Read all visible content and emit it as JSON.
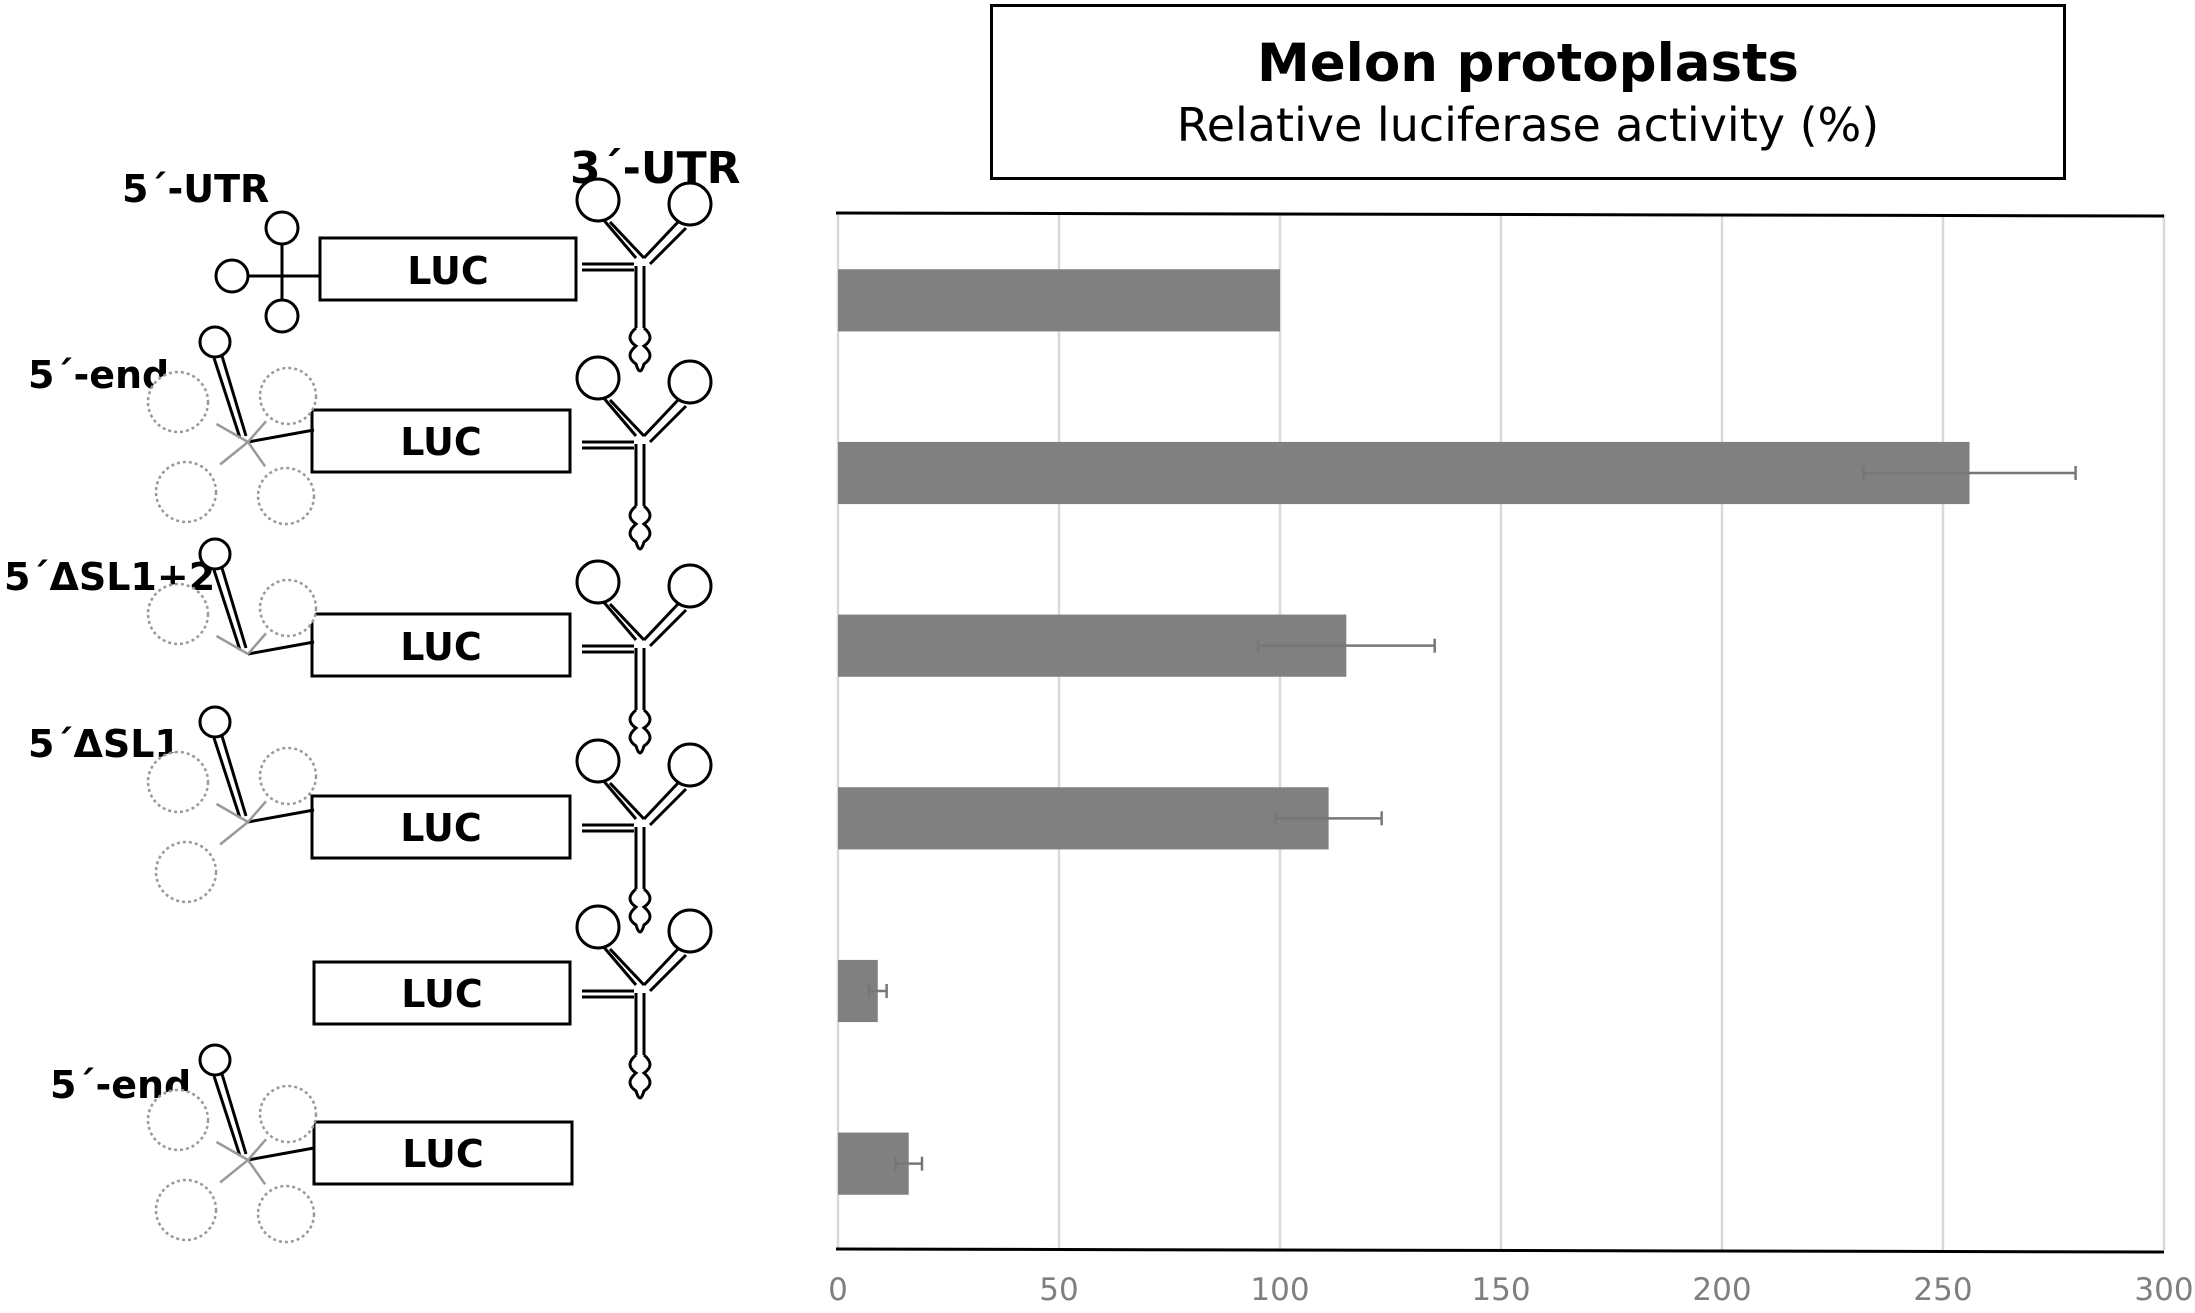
{
  "chart_data": {
    "type": "bar",
    "orientation": "horizontal",
    "title": "Melon protoplasts",
    "subtitle": "Relative luciferase activity (%)",
    "xlim": [
      0,
      300
    ],
    "x_ticks": [
      0,
      50,
      100,
      150,
      200,
      250,
      300
    ],
    "grid": true,
    "categories": [
      "5´-UTR / LUC / 3´-UTR",
      "5´-end / LUC / 3´-UTR",
      "5´ΔSL1+2 / LUC / 3´-UTR",
      "5´ΔSL1 / LUC / 3´-UTR",
      "LUC / 3´-UTR",
      "5´-end / LUC"
    ],
    "values": [
      100,
      256,
      115,
      111,
      9,
      16
    ],
    "errors": [
      0,
      24,
      20,
      12,
      2,
      3
    ],
    "bar_color": "#808080",
    "error_color": "#777777"
  },
  "constructs": {
    "luc_label": "LUC",
    "labels": [
      "5´-UTR",
      "5´-end",
      "5´ΔSL1+2",
      "5´ΔSL1",
      "5´-end"
    ],
    "utr3_label": "3´-UTR"
  }
}
